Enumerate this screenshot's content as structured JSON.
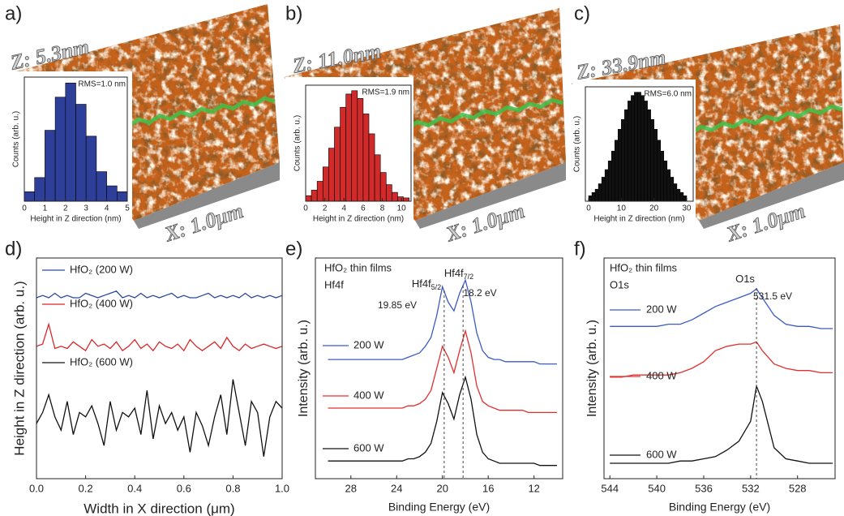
{
  "chart_data": [
    {
      "type": "histogram",
      "panel": "a)",
      "z_label": "Z: 5.3nm",
      "scan_label": "X: 1.0μm",
      "annotation": "RMS=1.0 nm",
      "xlabel": "Height in Z direction (nm)",
      "ylabel": "Counts (arb. u.)",
      "color": "#2e3f99",
      "bins": [
        0,
        0.5,
        1,
        1.5,
        2,
        2.5,
        3,
        3.5,
        4,
        4.5,
        5
      ],
      "counts": [
        8,
        20,
        60,
        88,
        100,
        82,
        55,
        25,
        13,
        8
      ],
      "xlim": [
        0,
        5
      ],
      "xticks": [
        0,
        1,
        2,
        3,
        4,
        5
      ],
      "ylim": [
        0,
        105
      ]
    },
    {
      "type": "histogram",
      "panel": "b)",
      "z_label": "Z: 11.0nm",
      "scan_label": "X: 1.0μm",
      "annotation": "RMS=1.9 nm",
      "xlabel": "Height in Z direction (nm)",
      "ylabel": "Counts (arb. u.)",
      "color": "#d02a2a",
      "bins": [
        0,
        0.6,
        1.2,
        1.8,
        2.4,
        3,
        3.6,
        4.2,
        4.8,
        5.4,
        6,
        6.6,
        7.2,
        7.8,
        8.4,
        9,
        9.6,
        10.2,
        10.8
      ],
      "counts": [
        5,
        10,
        18,
        31,
        48,
        67,
        85,
        97,
        100,
        93,
        79,
        61,
        42,
        26,
        15,
        8,
        4,
        3
      ],
      "xlim": [
        0,
        11
      ],
      "xticks": [
        0,
        2,
        4,
        6,
        8,
        10
      ],
      "ylim": [
        0,
        105
      ]
    },
    {
      "type": "histogram",
      "panel": "c)",
      "z_label": "Z: 33.9nm",
      "scan_label": "X: 1.0μm",
      "annotation": "RMS=6.0 nm",
      "xlabel": "Height in Z direction (nm)",
      "ylabel": "Counts (arb. u.)",
      "color": "#111111",
      "bins": [
        0,
        1,
        2,
        3,
        4,
        5,
        6,
        7,
        8,
        9,
        10,
        11,
        12,
        13,
        14,
        15,
        16,
        17,
        18,
        19,
        20,
        21,
        22,
        23,
        24,
        25,
        26,
        27,
        28,
        29,
        30
      ],
      "counts": [
        5,
        8,
        11,
        16,
        22,
        29,
        37,
        46,
        56,
        66,
        75,
        84,
        92,
        97,
        100,
        100,
        97,
        92,
        84,
        75,
        66,
        56,
        46,
        37,
        29,
        22,
        16,
        11,
        8,
        5
      ],
      "xlim": [
        -1,
        32
      ],
      "xticks": [
        0,
        10,
        20,
        30
      ],
      "ylim": [
        0,
        105
      ]
    },
    {
      "type": "line",
      "panel": "d)",
      "xlabel": "Width in X direction (μm)",
      "ylabel": "Height in Z direction (arb. u.)",
      "x": [
        0,
        0.025,
        0.05,
        0.075,
        0.1,
        0.125,
        0.15,
        0.175,
        0.2,
        0.225,
        0.25,
        0.275,
        0.3,
        0.325,
        0.35,
        0.375,
        0.4,
        0.425,
        0.45,
        0.475,
        0.5,
        0.525,
        0.55,
        0.575,
        0.6,
        0.625,
        0.65,
        0.675,
        0.7,
        0.725,
        0.75,
        0.775,
        0.8,
        0.825,
        0.85,
        0.875,
        0.9,
        0.925,
        0.95,
        0.975,
        1
      ],
      "series": [
        {
          "name": "HfO₂ (200 W)",
          "color": "#2b4a9a",
          "values": [
            82,
            83,
            82,
            84,
            82,
            83,
            82,
            82,
            84,
            83,
            82,
            83,
            84,
            85,
            82,
            83,
            82,
            84,
            82,
            83,
            82,
            83,
            84,
            82,
            83,
            82,
            82,
            83,
            84,
            82,
            83,
            82,
            83,
            82,
            84,
            82,
            83,
            82,
            83,
            82,
            83
          ]
        },
        {
          "name": "HfO₂ (400 W)",
          "color": "#d62828",
          "values": [
            60,
            61,
            70,
            59,
            60,
            59,
            62,
            60,
            58,
            63,
            60,
            61,
            59,
            62,
            58,
            60,
            63,
            59,
            61,
            58,
            62,
            60,
            59,
            61,
            58,
            63,
            60,
            58,
            60,
            62,
            59,
            64,
            60,
            58,
            61,
            59,
            60,
            61,
            60,
            59,
            60
          ]
        },
        {
          "name": "HfO₂ (600 W)",
          "color": "#111111",
          "values": [
            25,
            30,
            38,
            28,
            22,
            35,
            20,
            30,
            28,
            33,
            25,
            15,
            35,
            22,
            30,
            28,
            32,
            20,
            40,
            18,
            33,
            25,
            30,
            22,
            28,
            12,
            30,
            24,
            15,
            28,
            38,
            20,
            45,
            30,
            15,
            35,
            30,
            10,
            28,
            35,
            32
          ]
        }
      ],
      "xlim": [
        0,
        1
      ],
      "xticks": [
        {
          "value": 0,
          "label": "0.0"
        },
        0.2,
        0.4,
        0.6,
        0.8,
        {
          "value": 1,
          "label": "1.0"
        }
      ],
      "ylim": [
        0,
        100
      ]
    },
    {
      "type": "line",
      "panel": "e)",
      "xlabel": "Binding Energy (eV)",
      "ylabel": "Intensity (arb. u.)",
      "annotations": [
        "HfO₂ thin films",
        "Hf4f"
      ],
      "peaks": [
        {
          "value": 19.85,
          "label": "19.85 eV",
          "name": "Hf4f",
          "sub": "5/2"
        },
        {
          "value": 18.2,
          "label": "18.2 eV",
          "name": "Hf4f",
          "sub": "7/2"
        }
      ],
      "x": [
        30,
        29.5,
        29,
        28.5,
        28,
        27.5,
        27,
        26.5,
        26,
        25.5,
        25,
        24.5,
        24,
        23.5,
        23,
        22.5,
        22,
        21.5,
        21,
        20.5,
        20,
        19.5,
        19,
        18.5,
        18,
        17.5,
        17,
        16.5,
        16,
        15.5,
        15,
        14.5,
        14,
        13.5,
        13,
        12.5,
        12,
        11.5,
        11,
        10.5,
        10
      ],
      "series": [
        {
          "name": "200 W",
          "color": "#3b5bc4",
          "values": [
            54,
            54,
            54,
            54,
            54,
            54,
            54,
            54,
            54,
            54,
            54,
            54,
            54,
            54,
            55,
            56,
            57,
            60,
            64,
            74,
            87,
            80,
            76,
            84,
            90,
            80,
            66,
            58,
            55,
            54,
            54,
            53,
            53,
            53,
            53,
            53,
            53,
            52,
            52,
            52,
            52
          ]
        },
        {
          "name": "400 W",
          "color": "#e03030",
          "values": [
            32,
            32,
            32,
            32,
            32,
            32,
            32,
            32,
            32,
            32,
            32,
            32,
            32,
            32,
            33,
            33,
            34,
            36,
            40,
            50,
            60,
            55,
            48,
            58,
            67,
            57,
            42,
            35,
            33,
            32,
            31,
            31,
            31,
            31,
            31,
            30,
            30,
            30,
            30,
            30,
            30
          ]
        },
        {
          "name": "600 W",
          "color": "#111111",
          "values": [
            8,
            8,
            8,
            8,
            8,
            8,
            8,
            8,
            8,
            8,
            8,
            8,
            8,
            8,
            9,
            9,
            10,
            12,
            16,
            26,
            39,
            34,
            27,
            38,
            46,
            36,
            20,
            12,
            9,
            8,
            7,
            7,
            7,
            7,
            7,
            7,
            7,
            6,
            6,
            6,
            6
          ]
        }
      ],
      "xlim": [
        31.1,
        9.5
      ],
      "xticks": [
        28,
        24,
        20,
        16,
        12
      ],
      "ylim": [
        0,
        100
      ]
    },
    {
      "type": "line",
      "panel": "f)",
      "xlabel": "Binding Energy (eV)",
      "ylabel": "Intensity (arb. u.)",
      "annotations": [
        "HfO₂ thin films",
        "O1s"
      ],
      "peaks": [
        {
          "value": 531.5,
          "label": "531.5 eV",
          "name": "O1s"
        }
      ],
      "x": [
        544,
        543,
        542,
        541,
        540,
        539,
        538,
        537,
        536,
        535,
        534,
        533,
        532,
        531.5,
        531,
        530,
        529,
        528,
        527,
        526,
        525
      ],
      "series": [
        {
          "name": "200 W",
          "color": "#3b5bc4",
          "values": [
            69,
            69,
            69,
            69,
            69,
            70,
            70,
            72,
            75,
            78,
            80,
            82,
            84,
            86,
            82,
            74,
            70,
            69,
            69,
            68,
            68
          ]
        },
        {
          "name": "400 W",
          "color": "#e03030",
          "values": [
            46,
            46,
            47,
            47,
            47,
            47,
            48,
            50,
            53,
            58,
            60,
            61,
            61,
            62,
            58,
            52,
            50,
            49,
            49,
            48,
            48
          ]
        },
        {
          "name": "600 W",
          "color": "#111111",
          "values": [
            7,
            7,
            7,
            7,
            7,
            7,
            8,
            8,
            9,
            10,
            13,
            17,
            26,
            42,
            35,
            14,
            9,
            8,
            7,
            7,
            7
          ]
        }
      ],
      "xlim": [
        544.5,
        524.8
      ],
      "xticks": [
        544,
        540,
        536,
        532,
        528
      ],
      "ylim": [
        0,
        100
      ]
    }
  ]
}
